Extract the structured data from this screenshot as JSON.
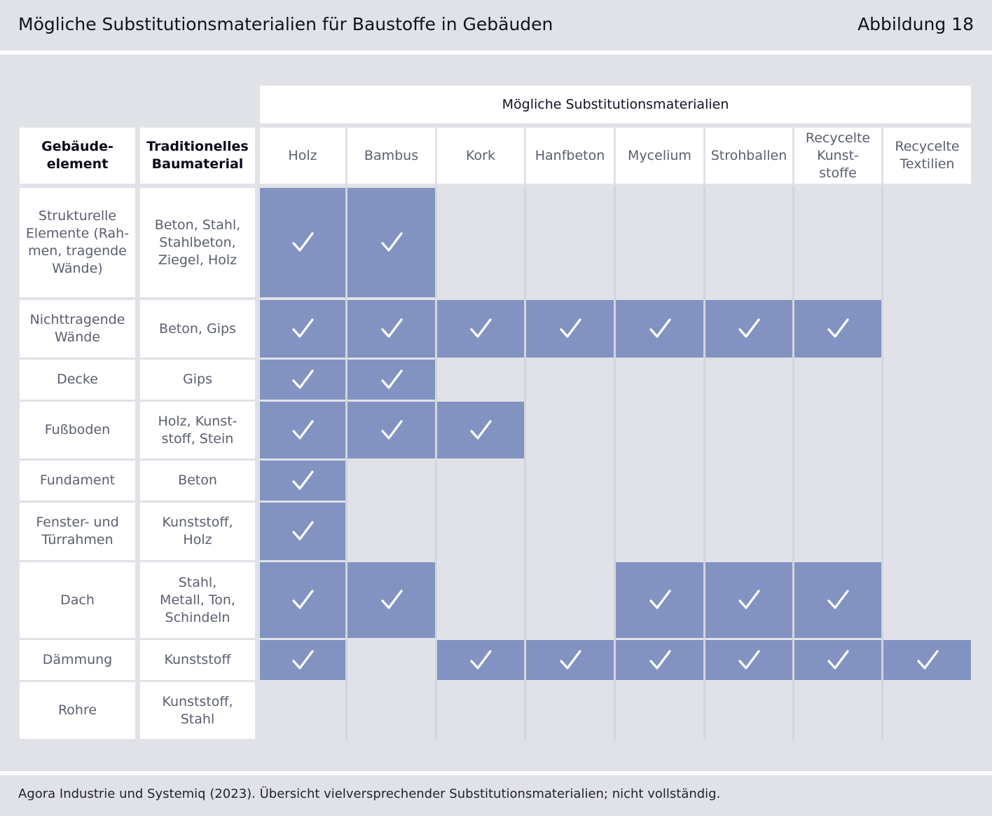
{
  "title": "Mögliche Substitutionsmaterialien für Baustoffe in Gebäuden",
  "figure_label": "Abbildung 18",
  "source": "Agora Industrie und Systemiq (2023). Übersicht vielversprechender Substitutionsmaterialien; nicht vollständig.",
  "colors": {
    "filled": "#8293c1",
    "empty": "#e1e2e8",
    "header_bg": "#e1e2e8",
    "check": "#ffffff"
  },
  "icons": {
    "check": "check-icon"
  },
  "table": {
    "group_header": "Mögliche Substitutionsmaterialien",
    "col_element_header": "Gebäude-\nelement",
    "col_material_header": "Traditionelles\nBaumaterial"
  },
  "chart_data": {
    "type": "table",
    "columns": [
      "Holz",
      "Bambus",
      "Kork",
      "Hanfbeton",
      "Mycelium",
      "Strohballen",
      "Recycelte\nKunst-\nstoffe",
      "Recycelte\nTextilien"
    ],
    "rows": [
      {
        "element": "Strukturelle\nElemente (Rah-\nmen, tragende\nWände)",
        "material": "Beton, Stahl,\nStahlbeton,\nZiegel, Holz",
        "checks": [
          1,
          1,
          0,
          0,
          0,
          0,
          0,
          0
        ]
      },
      {
        "element": "Nichttragende\nWände",
        "material": "Beton, Gips",
        "checks": [
          1,
          1,
          1,
          1,
          1,
          1,
          1,
          0
        ]
      },
      {
        "element": "Decke",
        "material": "Gips",
        "checks": [
          1,
          1,
          0,
          0,
          0,
          0,
          0,
          0
        ]
      },
      {
        "element": "Fußboden",
        "material": "Holz, Kunst-\nstoff, Stein",
        "checks": [
          1,
          1,
          1,
          0,
          0,
          0,
          0,
          0
        ]
      },
      {
        "element": "Fundament",
        "material": "Beton",
        "checks": [
          1,
          0,
          0,
          0,
          0,
          0,
          0,
          0
        ]
      },
      {
        "element": "Fenster- und\nTürrahmen",
        "material": "Kunststoff,\nHolz",
        "checks": [
          1,
          0,
          0,
          0,
          0,
          0,
          0,
          0
        ]
      },
      {
        "element": "Dach",
        "material": "Stahl,\nMetall, Ton,\nSchindeln",
        "checks": [
          1,
          1,
          0,
          0,
          1,
          1,
          1,
          0
        ]
      },
      {
        "element": "Dämmung",
        "material": "Kunststoff",
        "checks": [
          1,
          0,
          1,
          1,
          1,
          1,
          1,
          1
        ]
      },
      {
        "element": "Rohre",
        "material": "Kunststoff,\nStahl",
        "checks": [
          0,
          0,
          0,
          0,
          0,
          0,
          0,
          0
        ]
      }
    ]
  }
}
